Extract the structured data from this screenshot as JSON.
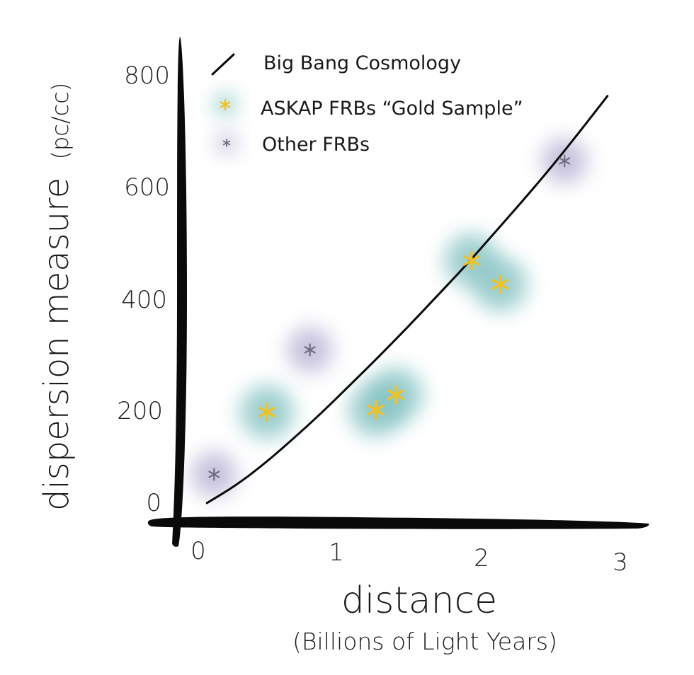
{
  "chart_data": {
    "type": "scatter",
    "xlabel": "distance",
    "xlabel_sub": "(Billions of Light Years)",
    "ylabel": "dispersion measure",
    "ylabel_unit": "(pc/cc)",
    "x_ticks": [
      "0",
      "1",
      "2",
      "3"
    ],
    "y_ticks": [
      "0",
      "200",
      "400",
      "600",
      "800"
    ],
    "xlim": [
      0,
      3
    ],
    "ylim": [
      0,
      800
    ],
    "grid": false,
    "legend_position": "top-left",
    "legend": [
      {
        "label": "Big Bang Cosmology",
        "kind": "line"
      },
      {
        "label": "ASKAP FRBs “Gold Sample”",
        "kind": "star-teal"
      },
      {
        "label": "Other FRBs",
        "kind": "star-purple"
      }
    ],
    "colors": {
      "askap_glow": "#7fbfbf",
      "askap_star": "#f2c21c",
      "other_glow": "#b4aed2",
      "other_star": "#6e6e82",
      "axis": "#0a0a0a",
      "curve": "#0a0a0a"
    },
    "series": [
      {
        "name": "Big Bang Cosmology",
        "type": "line",
        "x": [
          0.1,
          0.3,
          0.5,
          0.7,
          0.9,
          1.1,
          1.3,
          1.5,
          1.7,
          1.9,
          2.1,
          2.3,
          2.5,
          2.7,
          2.9
        ],
        "y": [
          4,
          36,
          76,
          122,
          170,
          222,
          274,
          328,
          384,
          440,
          500,
          560,
          622,
          688,
          756
        ]
      },
      {
        "name": "ASKAP FRBs “Gold Sample”",
        "type": "scatter",
        "x": [
          0.52,
          1.28,
          1.42,
          1.95,
          2.15
        ],
        "y": [
          172,
          176,
          204,
          452,
          408
        ]
      },
      {
        "name": "Other FRBs",
        "type": "scatter",
        "x": [
          0.15,
          0.82,
          2.6
        ],
        "y": [
          57,
          287,
          636
        ]
      }
    ]
  }
}
